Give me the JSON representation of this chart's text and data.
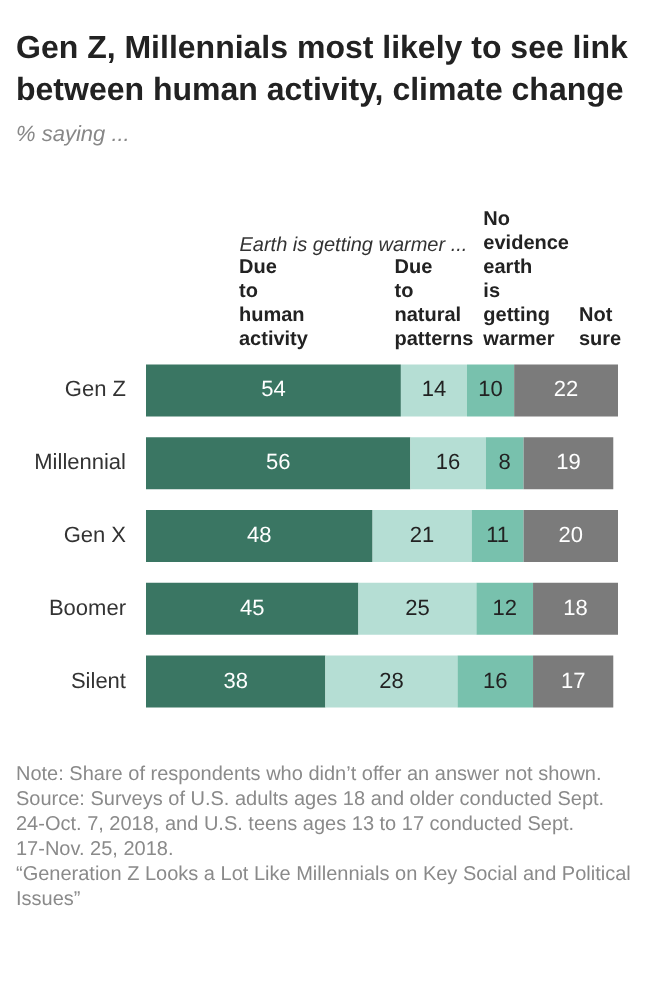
{
  "chart_data": {
    "type": "bar",
    "orientation": "horizontal",
    "stacked": true,
    "data_labels": true,
    "legend": "top",
    "title": "Gen Z, Millennials most likely to see link between human activity, climate change",
    "subtitle": "% saying ...",
    "categories": [
      "Gen Z",
      "Millennial",
      "Gen X",
      "Boomer",
      "Silent"
    ],
    "series": [
      {
        "name": "Due to human activity",
        "color": "#3a7663",
        "values": [
          54,
          56,
          48,
          45,
          38
        ]
      },
      {
        "name": "Due to natural patterns",
        "color": "#b5ded4",
        "values": [
          14,
          16,
          21,
          25,
          28
        ]
      },
      {
        "name": "No evidence earth is getting warmer",
        "color": "#78c1ad",
        "values": [
          10,
          8,
          11,
          12,
          16
        ]
      },
      {
        "name": "Not sure",
        "color": "#7b7b7b",
        "values": [
          22,
          19,
          20,
          18,
          17
        ]
      }
    ],
    "annotations": [
      "Earth is getting warmer ...",
      "Note: Share of respondents who didn’t offer an answer not shown.",
      "Source: Surveys of U.S. adults ages 18 and older conducted Sept. 24-Oct. 7, 2018, and U.S. teens ages 13 to 17 conducted Sept. 17-Nov. 25, 2018.",
      "“Generation Z Looks a Lot Like Millennials on Key Social and Political Issues”"
    ]
  }
}
